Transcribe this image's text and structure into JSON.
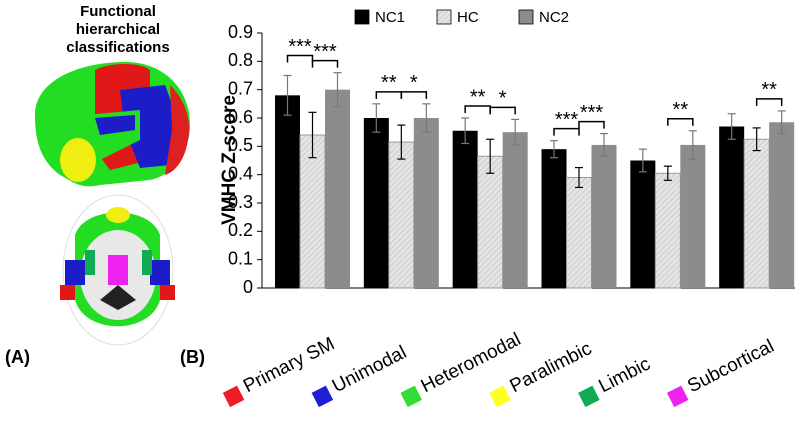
{
  "chart_data": {
    "type": "bar",
    "panel_a_label": "(A)",
    "panel_b_label": "(B)",
    "panel_a_title": [
      "Functional",
      "hierarchical",
      "classifications"
    ],
    "y_label": "VMHC Z-score",
    "categories": [
      "Primary SM",
      "Unimodal",
      "Heteromodal",
      "Paralimbic",
      "Limbic",
      "Subcortical"
    ],
    "category_colors": [
      "#ee1c24",
      "#1f1fd6",
      "#33dd33",
      "#ffff22",
      "#11aa55",
      "#ee22ee"
    ],
    "series": [
      {
        "name": "NC1",
        "color": "#000000",
        "values": [
          0.68,
          0.6,
          0.555,
          0.49,
          0.45,
          0.57
        ],
        "errors": [
          0.07,
          0.05,
          0.045,
          0.03,
          0.04,
          0.045
        ]
      },
      {
        "name": "HC",
        "color": "#dddddd",
        "hatch": true,
        "values": [
          0.54,
          0.515,
          0.465,
          0.39,
          0.405,
          0.525
        ],
        "errors": [
          0.08,
          0.06,
          0.06,
          0.035,
          0.025,
          0.04
        ]
      },
      {
        "name": "NC2",
        "color": "#8c8c8c",
        "values": [
          0.7,
          0.6,
          0.55,
          0.505,
          0.505,
          0.585
        ],
        "errors": [
          0.06,
          0.05,
          0.045,
          0.04,
          0.05,
          0.04
        ]
      }
    ],
    "significance": [
      [
        "***",
        "***"
      ],
      [
        "**",
        "*"
      ],
      [
        "**",
        "*"
      ],
      [
        "***",
        "***"
      ],
      [
        null,
        "**"
      ],
      [
        null,
        "**"
      ]
    ],
    "ylim": [
      0,
      0.9
    ],
    "yticks": [
      0,
      0.1,
      0.2,
      0.3,
      0.4,
      0.5,
      0.6,
      0.7,
      0.8,
      0.9
    ]
  }
}
